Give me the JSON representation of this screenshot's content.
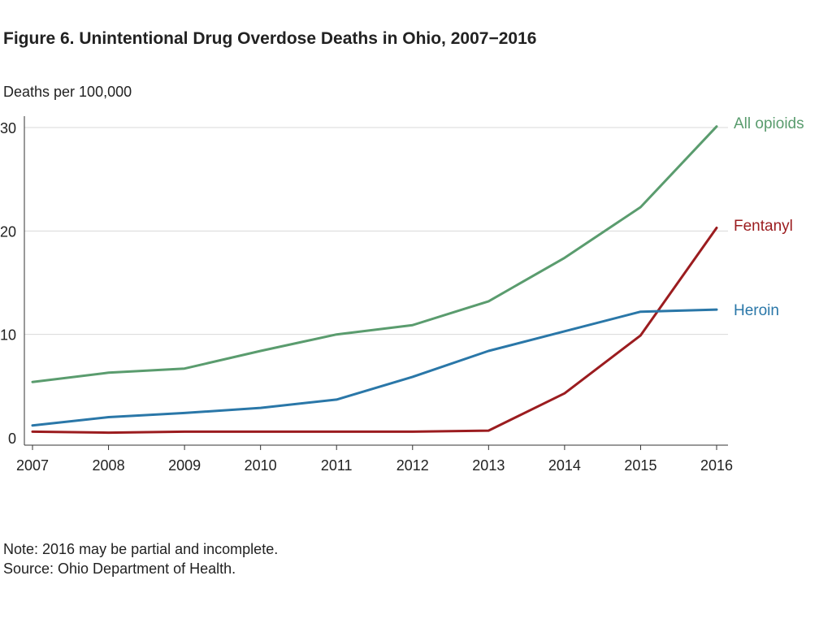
{
  "chart_data": {
    "type": "line",
    "title": "Figure 6. Unintentional Drug Overdose Deaths in Ohio, 2007−2016",
    "ylabel": "Deaths per 100,000",
    "xlabel": "",
    "x": [
      "2007",
      "2008",
      "2009",
      "2010",
      "2011",
      "2012",
      "2013",
      "2014",
      "2015",
      "2016"
    ],
    "ylim": [
      0,
      30
    ],
    "yticks": [
      "0",
      "10",
      "20",
      "30"
    ],
    "grid": "horizontal",
    "series": [
      {
        "name": "All opioids",
        "color": "#5a9c6e",
        "values": [
          5.4,
          6.3,
          6.7,
          8.4,
          10.0,
          10.9,
          13.2,
          17.4,
          22.3,
          30.1
        ]
      },
      {
        "name": "Fentanyl",
        "color": "#9b1c1f",
        "values": [
          0.6,
          0.5,
          0.6,
          0.6,
          0.6,
          0.6,
          0.7,
          4.3,
          9.9,
          20.3
        ]
      },
      {
        "name": "Heroin",
        "color": "#2a77a8",
        "values": [
          1.2,
          2.0,
          2.4,
          2.9,
          3.7,
          5.9,
          8.4,
          10.3,
          12.2,
          12.4
        ]
      }
    ]
  },
  "notes": {
    "note": "Note: 2016 may be partial and incomplete.",
    "source": "Source: Ohio Department of Health."
  }
}
